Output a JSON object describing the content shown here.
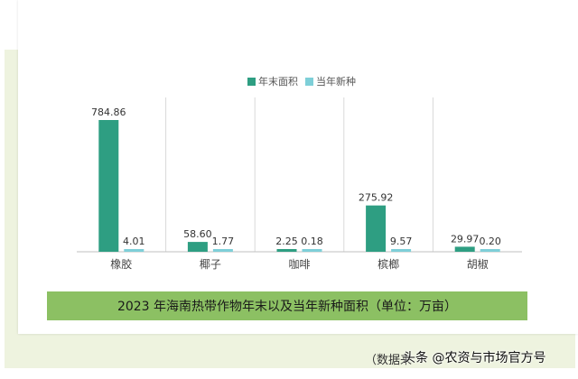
{
  "chart_data": {
    "type": "bar",
    "title": "2023 年海南热带作物年末以及当年新种面积（单位：万亩）",
    "categories": [
      "橡胶",
      "椰子",
      "咖啡",
      "槟榔",
      "胡椒"
    ],
    "series": [
      {
        "name": "年末面积",
        "values": [
          784.86,
          58.6,
          2.25,
          275.92,
          29.97
        ],
        "labels": [
          "784.86",
          "58.60",
          "2.25",
          "275.92",
          "29.97"
        ],
        "color": "#2e9e82"
      },
      {
        "name": "当年新种",
        "values": [
          4.01,
          1.77,
          0.18,
          9.57,
          0.2
        ],
        "labels": [
          "4.01",
          "1.77",
          "0.18",
          "9.57",
          "0.20"
        ],
        "color": "#7ecfd8"
      }
    ],
    "ylim": [
      0,
      800
    ],
    "legend_position": "top-center",
    "grid": false
  },
  "source_label": "（数据来",
  "watermark": "头条 @农资与市场官方号"
}
